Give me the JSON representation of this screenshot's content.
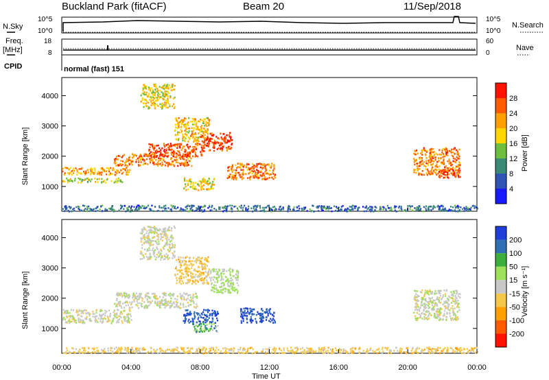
{
  "header": {
    "station": "Buckland Park (fitACF)",
    "beam": "Beam 20",
    "date": "11/Sep/2018"
  },
  "top_panel": {
    "left_label_top": "N.Sky",
    "left_label_freq": "Freq.",
    "left_label_mhz": "[MHz]",
    "left_label_cpid": "CPID",
    "right_label_nsearch": "N.Search",
    "right_label_nave": "Nave",
    "sky_ticks": [
      "10^5",
      "10^0"
    ],
    "search_ticks": [
      "10^5",
      "10^0"
    ],
    "freq_ticks": [
      "18",
      "8"
    ],
    "nave_ticks": [
      "60",
      "0"
    ],
    "cpid_text": "normal (fast) 151"
  },
  "colors": {
    "power": [
      "#1a1aff",
      "#2f54b3",
      "#3a8a78",
      "#6fbf3f",
      "#ffd700",
      "#ff9f00",
      "#ff5a00",
      "#ff1200"
    ],
    "velocity": [
      "#ff1200",
      "#ff5a00",
      "#ff9f00",
      "#f5c84a",
      "#c8c8c8",
      "#9fe05a",
      "#3cae3c",
      "#2f6fb3",
      "#1f3fd8"
    ]
  },
  "chart_data": [
    {
      "type": "heatmap",
      "name": "power",
      "ylabel": "Slant Range [km]",
      "xlabel": "",
      "ylim": [
        180,
        4600
      ],
      "yticks": [
        "1000",
        "2000",
        "3000",
        "4000"
      ],
      "ytick_values": [
        1000,
        2000,
        3000,
        4000
      ],
      "colorbar_label": "Power [dB]",
      "colorbar_ticks": [
        "4",
        "8",
        "12",
        "16",
        "20",
        "24",
        "28"
      ],
      "colorbar_range": [
        0,
        32
      ],
      "regions": [
        {
          "t0": 0.0,
          "t1": 4.0,
          "r0": 1400,
          "r1": 1650,
          "v": 22
        },
        {
          "t0": 0.0,
          "t1": 3.5,
          "r0": 1150,
          "r1": 1300,
          "v": 16
        },
        {
          "t0": 3.0,
          "t1": 7.5,
          "r0": 1700,
          "r1": 2100,
          "v": 24
        },
        {
          "t0": 5.0,
          "t1": 8.2,
          "r0": 2000,
          "r1": 2450,
          "v": 27
        },
        {
          "t0": 6.5,
          "t1": 8.5,
          "r0": 2500,
          "r1": 3300,
          "v": 20
        },
        {
          "t0": 8.0,
          "t1": 9.8,
          "r0": 2200,
          "r1": 2800,
          "v": 28
        },
        {
          "t0": 9.5,
          "t1": 12.3,
          "r0": 1250,
          "r1": 1800,
          "v": 24
        },
        {
          "t0": 7.0,
          "t1": 8.8,
          "r0": 900,
          "r1": 1300,
          "v": 18
        },
        {
          "t0": 4.5,
          "t1": 6.5,
          "r0": 3600,
          "r1": 4400,
          "v": 18
        },
        {
          "t0": 20.3,
          "t1": 23.0,
          "r0": 1400,
          "r1": 2300,
          "v": 24
        },
        {
          "t0": 21.5,
          "t1": 23.0,
          "r0": 1300,
          "r1": 1600,
          "v": 28
        },
        {
          "t0": 0.0,
          "t1": 24.0,
          "r0": 200,
          "r1": 400,
          "v": 8
        }
      ]
    },
    {
      "type": "heatmap",
      "name": "velocity",
      "ylabel": "Slant Range [km]",
      "xlabel": "Time UT",
      "ylim": [
        180,
        4600
      ],
      "yticks": [
        "1000",
        "2000",
        "3000",
        "4000"
      ],
      "ytick_values": [
        1000,
        2000,
        3000,
        4000
      ],
      "colorbar_label": "Velocity [m s⁻¹]",
      "colorbar_ticks": [
        "200",
        "100",
        "50",
        "15",
        "-15",
        "-50",
        "-100",
        "-200"
      ],
      "xticks": [
        "00:00",
        "04:00",
        "08:00",
        "12:00",
        "16:00",
        "20:00",
        "00:00"
      ],
      "xtick_values": [
        0,
        4,
        8,
        12,
        16,
        20,
        24
      ],
      "regions": [
        {
          "t0": 0.0,
          "t1": 4.0,
          "r0": 1200,
          "r1": 1650,
          "v": 0
        },
        {
          "t0": 3.0,
          "t1": 7.8,
          "r0": 1700,
          "r1": 2200,
          "v": 0
        },
        {
          "t0": 6.5,
          "t1": 8.5,
          "r0": 2500,
          "r1": 3400,
          "v": -30
        },
        {
          "t0": 8.5,
          "t1": 10.2,
          "r0": 2200,
          "r1": 3000,
          "v": 20
        },
        {
          "t0": 7.0,
          "t1": 9.0,
          "r0": 1200,
          "r1": 1650,
          "v": 200
        },
        {
          "t0": 10.3,
          "t1": 12.3,
          "r0": 1200,
          "r1": 1700,
          "v": 200
        },
        {
          "t0": 7.5,
          "t1": 9.0,
          "r0": 900,
          "r1": 1200,
          "v": 60
        },
        {
          "t0": 4.5,
          "t1": 6.5,
          "r0": 3300,
          "r1": 4400,
          "v": 0
        },
        {
          "t0": 20.3,
          "t1": 23.0,
          "r0": 1300,
          "r1": 2300,
          "v": 0
        },
        {
          "t0": 0.0,
          "t1": 24.0,
          "r0": 200,
          "r1": 400,
          "v": -30
        }
      ]
    }
  ]
}
